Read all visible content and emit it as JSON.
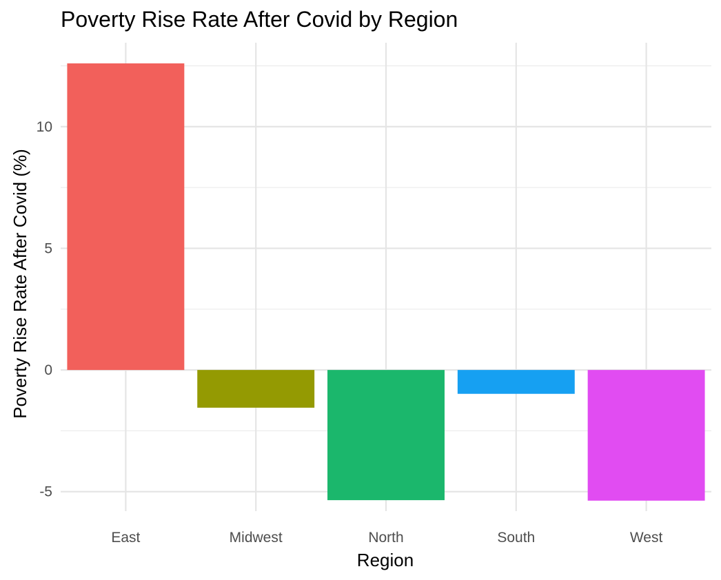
{
  "chart_data": {
    "type": "bar",
    "title": "Poverty Rise Rate After Covid by Region",
    "xlabel": "Region",
    "ylabel": "Poverty Rise Rate After Covid (%)",
    "categories": [
      "East",
      "Midwest",
      "North",
      "South",
      "West"
    ],
    "values": [
      12.6,
      -1.55,
      -5.35,
      -0.98,
      -5.37
    ],
    "colors": [
      "#F2605B",
      "#949A02",
      "#1BB76C",
      "#16A0F2",
      "#E14CF2"
    ],
    "ylim": [
      -5.8,
      13.45
    ],
    "yticks": [
      -5,
      0,
      5,
      10
    ],
    "ytick_labels": [
      "-5",
      "0",
      "5",
      "10"
    ],
    "grid": true,
    "legend": "none"
  }
}
